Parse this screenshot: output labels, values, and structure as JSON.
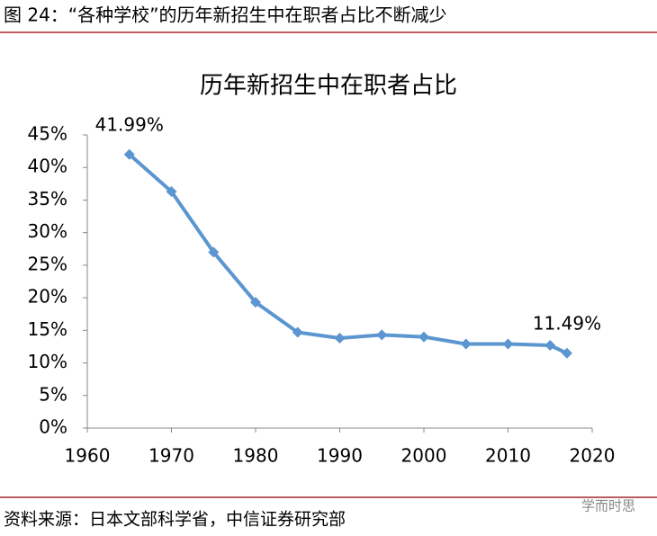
{
  "header": {
    "title": "图 24：“各种学校”的历年新招生中在职者占比不断减少"
  },
  "footer": {
    "source": "资料来源：日本文部科学省，中信证券研究部",
    "watermark": "学而时思"
  },
  "chart_data": {
    "type": "line",
    "title": "历年新招生中在职者占比",
    "x": [
      1965,
      1970,
      1975,
      1980,
      1985,
      1990,
      1995,
      2000,
      2005,
      2010,
      2015,
      2017
    ],
    "series": [
      {
        "name": "在职者占比",
        "color": "#5b96d0",
        "values": [
          41.99,
          36.3,
          27.0,
          19.3,
          14.7,
          13.8,
          14.3,
          14.0,
          12.9,
          12.9,
          12.7,
          11.49
        ],
        "value_labels": [
          "41.99%",
          null,
          null,
          null,
          null,
          null,
          null,
          null,
          null,
          null,
          null,
          "11.49%"
        ]
      }
    ],
    "xlim": [
      1960,
      2020
    ],
    "xticks": [
      1960,
      1970,
      1980,
      1990,
      2000,
      2010,
      2020
    ],
    "ylim": [
      0,
      45
    ],
    "yticks": [
      {
        "value": 0,
        "label": "0%"
      },
      {
        "value": 5,
        "label": "5%"
      },
      {
        "value": 10,
        "label": "10%"
      },
      {
        "value": 15,
        "label": "15%"
      },
      {
        "value": 20,
        "label": "20%"
      },
      {
        "value": 25,
        "label": "25%"
      },
      {
        "value": 30,
        "label": "30%"
      },
      {
        "value": 35,
        "label": "35%"
      },
      {
        "value": 40,
        "label": "40%"
      },
      {
        "value": 45,
        "label": "45%"
      }
    ],
    "grid": false
  }
}
